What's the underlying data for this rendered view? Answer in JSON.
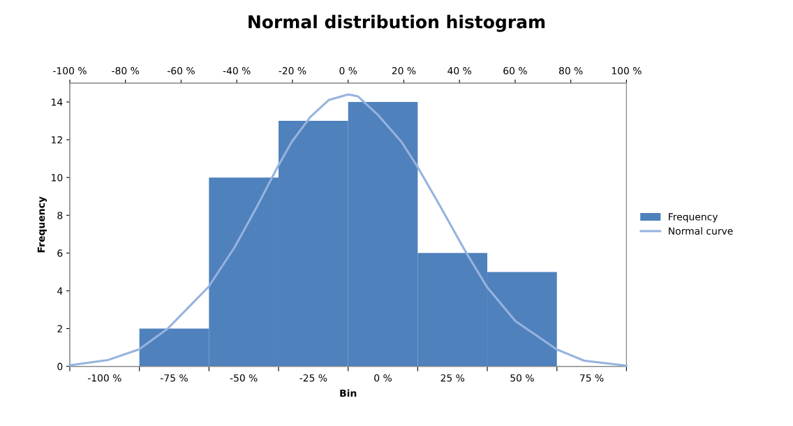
{
  "chart_data": {
    "type": "bar",
    "title": "Normal distribution histogram",
    "xlabel": "Bin",
    "ylabel": "Frequency",
    "categories": [
      "-100 %",
      "-75 %",
      "-50 %",
      "-25 %",
      "0 %",
      "25 %",
      "50 %",
      "75 %"
    ],
    "series": [
      {
        "name": "Frequency",
        "color": "#4f81bd",
        "values": [
          0,
          2,
          10,
          13,
          14,
          6,
          5,
          0
        ]
      },
      {
        "name": "Normal curve",
        "type": "line",
        "color": "#95b3de",
        "axis": "x2",
        "marker": "none",
        "x": [
          -100,
          -86.2,
          -75.1,
          -64.8,
          -50.2,
          -40.8,
          -32.6,
          -25.2,
          -20.2,
          -13.6,
          -7.0,
          0,
          3.5,
          10.8,
          19.1,
          24.8,
          33.0,
          42.1,
          49.9,
          60.1,
          74.9,
          84.8,
          100
        ],
        "values": [
          0.06,
          0.34,
          0.9,
          2.0,
          4.2,
          6.3,
          8.5,
          10.6,
          11.9,
          13.2,
          14.1,
          14.4,
          14.3,
          13.3,
          11.9,
          10.6,
          8.5,
          6.1,
          4.2,
          2.4,
          0.9,
          0.3,
          0.04
        ]
      }
    ],
    "ylim": [
      0,
      15
    ],
    "yticks": [
      0,
      2,
      4,
      6,
      8,
      10,
      12,
      14
    ],
    "x2lim": [
      -100,
      100
    ],
    "x2ticks": [
      {
        "value": -100,
        "label": "-100 %"
      },
      {
        "value": -80,
        "label": "-80 %"
      },
      {
        "value": -60,
        "label": "-60 %"
      },
      {
        "value": -40,
        "label": "-40 %"
      },
      {
        "value": -20,
        "label": "-20 %"
      },
      {
        "value": 0,
        "label": "0 %"
      },
      {
        "value": 20,
        "label": "20 %"
      },
      {
        "value": 40,
        "label": "40 %"
      },
      {
        "value": 60,
        "label": "60 %"
      },
      {
        "value": 80,
        "label": "80 %"
      },
      {
        "value": 100,
        "label": "100 %"
      }
    ],
    "grid": false,
    "legend": "right"
  }
}
